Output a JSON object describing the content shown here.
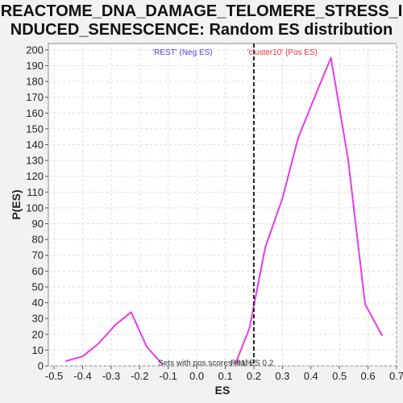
{
  "chart_data": {
    "type": "line",
    "title_lines": [
      "REACTOME_DNA_DAMAGE_TELOMERE_STRESS_I",
      "NDUCED_SENESCENCE: Random ES distribution"
    ],
    "xlabel": "ES",
    "ylabel": "P(ES)",
    "xlim": [
      -0.52,
      0.7
    ],
    "ylim": [
      0,
      204
    ],
    "x_ticks": [
      -0.5,
      -0.4,
      -0.3,
      -0.2,
      -0.1,
      0.0,
      0.1,
      0.2,
      0.3,
      0.4,
      0.5,
      0.6,
      0.7
    ],
    "x_tick_labels": [
      "-0.5",
      "-0.4",
      "-0.3",
      "-0.2",
      "-0.1",
      "0.0",
      "0.1",
      "0.2",
      "0.3",
      "0.4",
      "0.5",
      "0.6",
      "0.7"
    ],
    "y_ticks": [
      0,
      10,
      20,
      30,
      40,
      50,
      60,
      70,
      80,
      90,
      100,
      110,
      120,
      130,
      140,
      150,
      160,
      170,
      180,
      190,
      200
    ],
    "y_tick_labels": [
      "0",
      "10",
      "20",
      "30",
      "40",
      "50",
      "60",
      "70",
      "80",
      "90",
      "100",
      "110",
      "120",
      "130",
      "140",
      "150",
      "160",
      "170",
      "180",
      "190",
      "200"
    ],
    "grid": true,
    "series": [
      {
        "color": "#e83be8",
        "segments": [
          [
            [
              -0.46,
              3
            ],
            [
              -0.4,
              6
            ],
            [
              -0.345,
              14
            ],
            [
              -0.285,
              26
            ],
            [
              -0.23,
              34
            ],
            [
              -0.175,
              12
            ],
            [
              -0.12,
              1
            ]
          ],
          [
            [
              0.135,
              1
            ],
            [
              0.185,
              24
            ],
            [
              0.24,
              75
            ],
            [
              0.3,
              106
            ],
            [
              0.355,
              144
            ],
            [
              0.415,
              171
            ],
            [
              0.47,
              195
            ],
            [
              0.53,
              131
            ],
            [
              0.59,
              39
            ],
            [
              0.65,
              19
            ]
          ]
        ]
      }
    ],
    "real_es": {
      "x": 0.2,
      "label": "Real ES 0.2"
    },
    "annotations": {
      "neg": {
        "text": "'REST' (Neg ES)",
        "color": "#4444dd"
      },
      "pos": {
        "text": "'cluster10' (Pos ES)",
        "color": "#dd3333"
      },
      "pos_scores": {
        "text": "Sets with pos scores: 91%"
      }
    }
  }
}
